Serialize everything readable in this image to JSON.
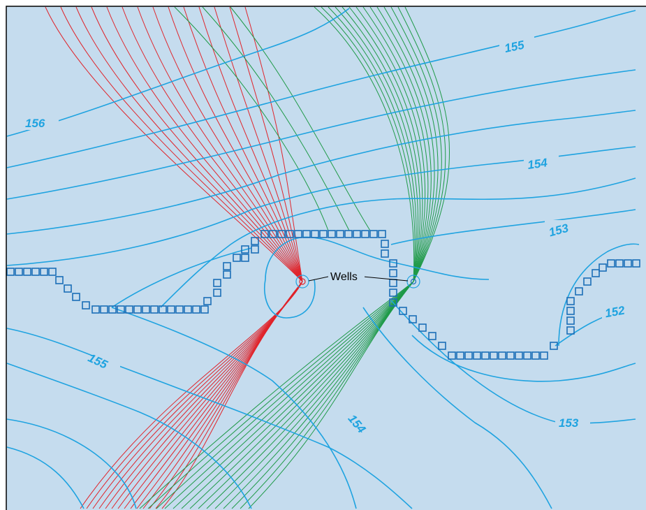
{
  "wells_label": "Wells",
  "contour_labels": [
    "156",
    "155",
    "154",
    "153",
    "152",
    "155",
    "154",
    "153"
  ],
  "colors": {
    "background": "#c5dcee",
    "frame": "#000000",
    "head_contour": "#1fa3e0",
    "red_flow_lines": "#e0242b",
    "green_flow_lines": "#1f9a48",
    "boundary_cells": "#1b6fb8"
  }
}
